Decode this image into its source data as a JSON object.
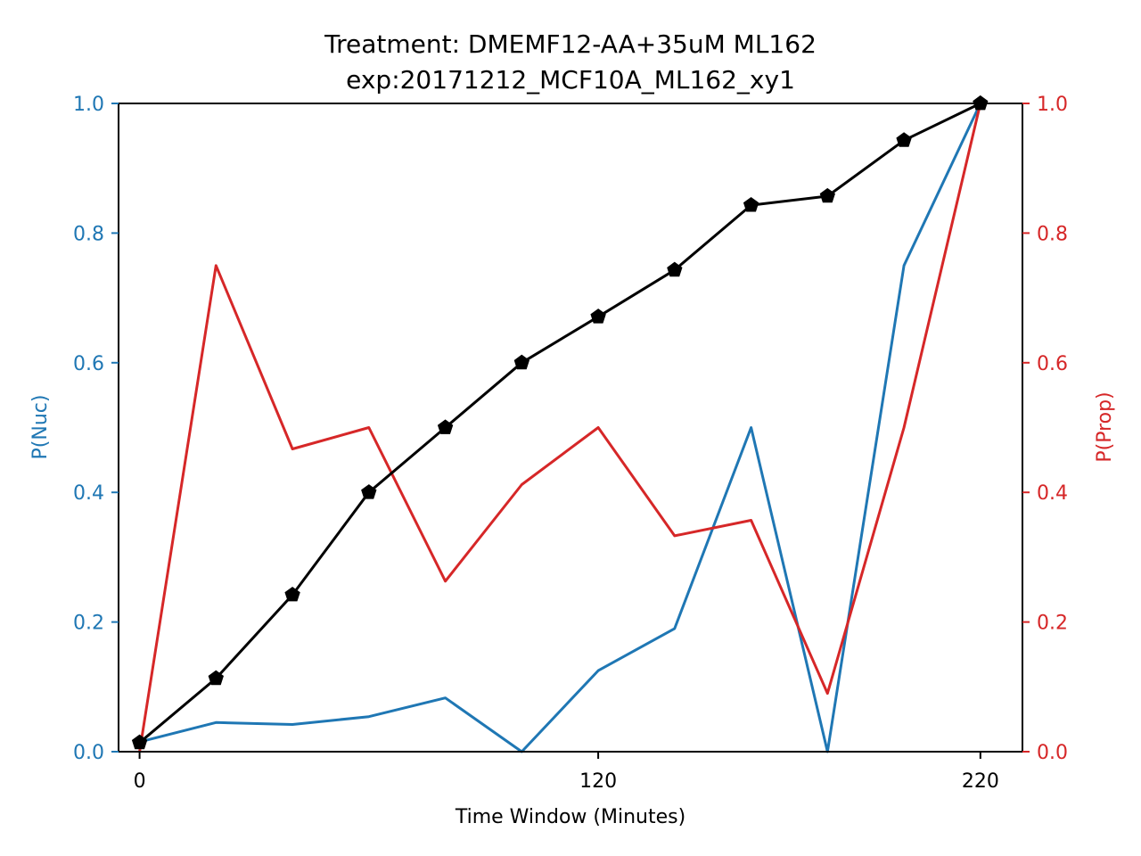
{
  "chart_data": {
    "type": "line",
    "title": "Treatment: DMEMF12-AA+35uM ML162",
    "subtitle": "exp:20171212_MCF10A_ML162_xy1",
    "xlabel": "Time Window (Minutes)",
    "ylabel_left": "P(Nuc)",
    "ylabel_right": "P(Prop)",
    "xlim": [
      -5.5,
      231
    ],
    "ylim_left": [
      0,
      1
    ],
    "ylim_right": [
      0,
      1
    ],
    "x_ticks": [
      0,
      120,
      220
    ],
    "x_tick_labels": [
      "0",
      "120",
      "220"
    ],
    "y_ticks_left": [
      0.0,
      0.2,
      0.4,
      0.6,
      0.8,
      1.0
    ],
    "y_tick_labels_left": [
      "0.0",
      "0.2",
      "0.4",
      "0.6",
      "0.8",
      "1.0"
    ],
    "y_ticks_right": [
      0.0,
      0.2,
      0.4,
      0.6,
      0.8,
      1.0
    ],
    "y_tick_labels_right": [
      "0.0",
      "0.2",
      "0.4",
      "0.6",
      "0.8",
      "1.0"
    ],
    "grid": false,
    "x": [
      0,
      20,
      40,
      60,
      80,
      100,
      120,
      140,
      160,
      180,
      200,
      220
    ],
    "series": [
      {
        "axis": "left",
        "color": "#1f77b4",
        "marker": "none",
        "values": [
          0.015,
          0.045,
          0.042,
          0.054,
          0.083,
          0.0,
          0.125,
          0.19,
          0.5,
          0.0,
          0.75,
          1.0
        ]
      },
      {
        "axis": "right",
        "color": "#d62728",
        "marker": "none",
        "values": [
          0.0,
          0.75,
          0.467,
          0.5,
          0.263,
          0.412,
          0.5,
          0.333,
          0.357,
          0.09,
          0.5,
          1.0
        ]
      },
      {
        "axis": "left",
        "color": "#000000",
        "marker": "pentagon",
        "values": [
          0.014,
          0.113,
          0.242,
          0.4,
          0.5,
          0.6,
          0.671,
          0.743,
          0.843,
          0.857,
          0.943,
          1.0
        ]
      }
    ],
    "colors": {
      "left_axis": "#1f77b4",
      "right_axis": "#d62728",
      "frame": "#000000"
    }
  }
}
